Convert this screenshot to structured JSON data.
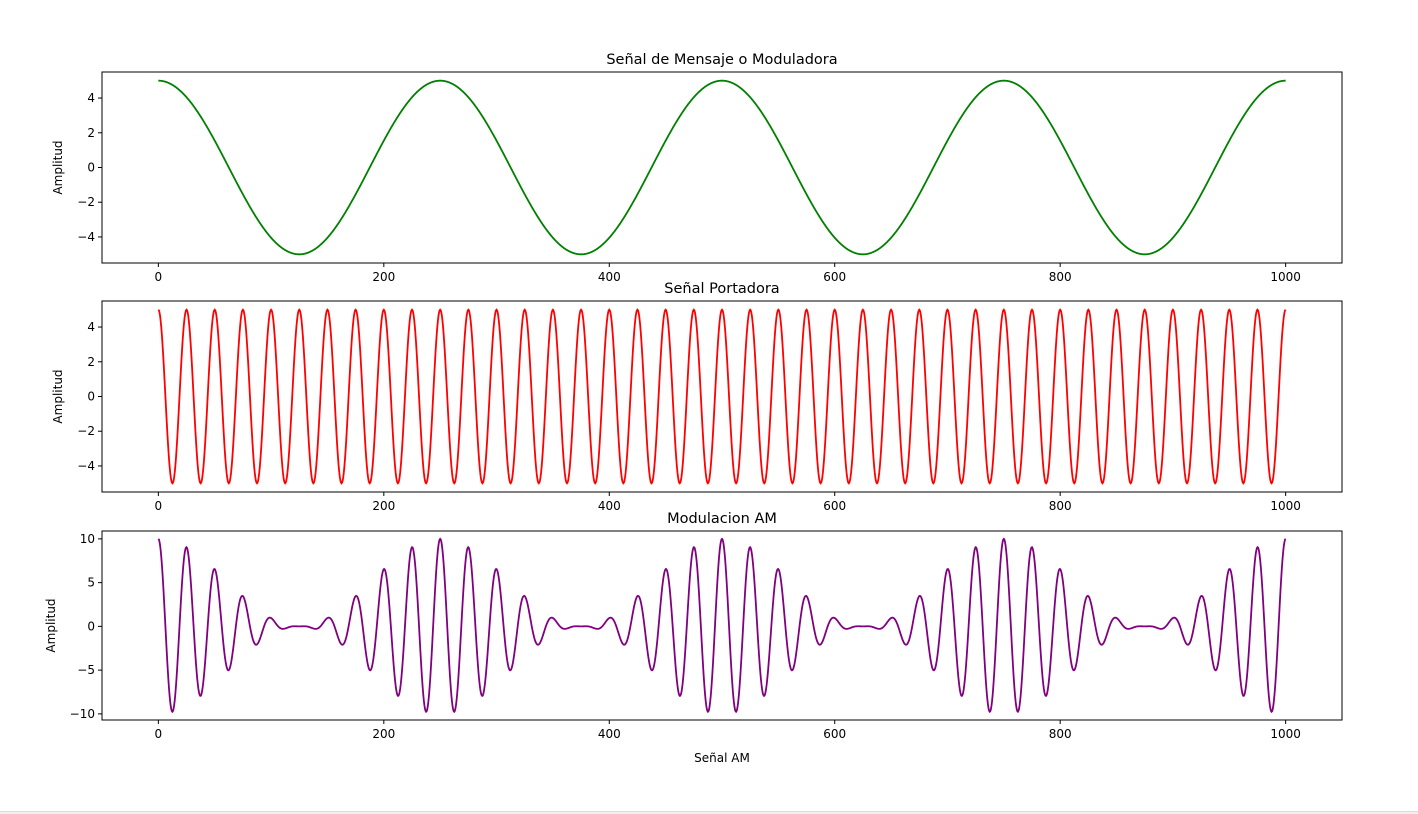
{
  "chart_data": [
    {
      "type": "line",
      "title": "Señal de Mensaje o Moduladora",
      "xlabel": "",
      "ylabel": "Amplitud",
      "xlim": [
        -50,
        1050
      ],
      "ylim": [
        -5.5,
        5.5
      ],
      "xticks": [
        "0",
        "200",
        "400",
        "600",
        "800",
        "1000"
      ],
      "yticks": [
        "−4",
        "−2",
        "0",
        "2",
        "4"
      ],
      "series": [
        {
          "function": "cosine",
          "amplitude": 5,
          "period": 250,
          "x_range": [
            0,
            1000
          ],
          "color": "#008000"
        }
      ]
    },
    {
      "type": "line",
      "title": "Señal Portadora",
      "xlabel": "",
      "ylabel": "Amplitud",
      "xlim": [
        -50,
        1050
      ],
      "ylim": [
        -5.5,
        5.5
      ],
      "xticks": [
        "0",
        "200",
        "400",
        "600",
        "800",
        "1000"
      ],
      "yticks": [
        "−4",
        "−2",
        "0",
        "2",
        "4"
      ],
      "series": [
        {
          "function": "cosine",
          "amplitude": 5,
          "period": 25,
          "x_range": [
            0,
            1000
          ],
          "color": "#ff0000"
        }
      ]
    },
    {
      "type": "line",
      "title": "Modulacion AM",
      "xlabel": "Señal AM",
      "ylabel": "Amplitud",
      "xlim": [
        -50,
        1050
      ],
      "ylim": [
        -10.7,
        10.9
      ],
      "xticks": [
        "0",
        "200",
        "400",
        "600",
        "800",
        "1000"
      ],
      "yticks": [
        "−10",
        "−5",
        "0",
        "5",
        "10"
      ],
      "series": [
        {
          "function": "AM: (1 + message/5) * carrier",
          "message_amplitude": 5,
          "message_period": 250,
          "carrier_amplitude": 5,
          "carrier_period": 25,
          "x_range": [
            0,
            1000
          ],
          "color": "#800080"
        }
      ]
    }
  ]
}
